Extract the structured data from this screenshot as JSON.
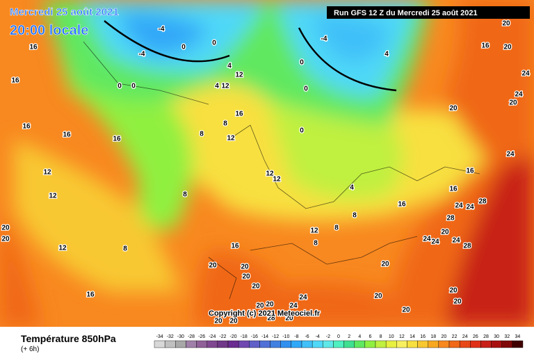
{
  "header": {
    "date": "Mercredi 25 août 2021",
    "time": "20:00 locale",
    "run": "Run GFS 12 Z du Mercredi 25 août 2021"
  },
  "copyright": "Copyright (c) 2021 Meteociel.fr",
  "footer": {
    "title": "Température 850hPa",
    "step": "(+ 6h)"
  },
  "scale": {
    "labels": [
      -34,
      -32,
      -30,
      -28,
      -26,
      -24,
      -22,
      -20,
      -18,
      -16,
      -14,
      -12,
      -10,
      -8,
      -6,
      -4,
      -2,
      0,
      2,
      4,
      6,
      8,
      10,
      12,
      14,
      16,
      18,
      20,
      22,
      24,
      26,
      28,
      30,
      32,
      34
    ],
    "colors": [
      "#d8d8d8",
      "#c0c0c0",
      "#a8a8a8",
      "#a080a8",
      "#906098",
      "#804890",
      "#703888",
      "#6a2c90",
      "#7048b0",
      "#6060c8",
      "#5070d8",
      "#4080e0",
      "#3090f0",
      "#30a8f8",
      "#40c0f8",
      "#50d8f8",
      "#60e8e8",
      "#50f0c0",
      "#40e090",
      "#60e860",
      "#90f040",
      "#c0f040",
      "#e8f040",
      "#f8f060",
      "#f8e040",
      "#f8c830",
      "#f8a820",
      "#f88820",
      "#f06818",
      "#e84818",
      "#e03018",
      "#c82018",
      "#a81010",
      "#800808",
      "#400000"
    ]
  },
  "contour_labels": [
    16,
    16,
    16,
    16,
    16,
    12,
    12,
    8,
    8,
    12,
    16,
    20,
    20,
    20,
    20,
    20,
    20,
    20,
    16,
    8,
    12,
    16,
    8,
    12,
    4,
    12,
    4,
    0,
    0,
    -4,
    -4,
    0,
    0,
    -4,
    0,
    0,
    0,
    4,
    4,
    20,
    16,
    16,
    16,
    24,
    24,
    24,
    28,
    28,
    20,
    24,
    24,
    24,
    28,
    20,
    20,
    20,
    20,
    20,
    20,
    16,
    20,
    24,
    24,
    20,
    12,
    12,
    8,
    8,
    8,
    12,
    24,
    24,
    20,
    28,
    20,
    20,
    20
  ]
}
